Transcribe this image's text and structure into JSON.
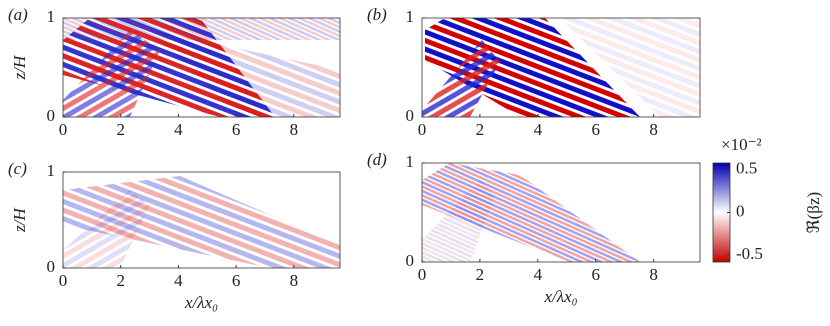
{
  "chart_data": [
    {
      "type": "heatmap",
      "panel_label": "(a)",
      "y_label": "z/H",
      "xlim": [
        0,
        9.6
      ],
      "xticks": [
        0,
        2,
        4,
        6,
        8
      ],
      "ylim": [
        0,
        1
      ],
      "yticks": [
        0,
        1
      ]
    },
    {
      "type": "heatmap",
      "panel_label": "(b)",
      "xlim": [
        0,
        9.6
      ],
      "xticks": [
        0,
        2,
        4,
        6,
        8
      ],
      "ylim": [
        0,
        1
      ],
      "yticks": [
        0,
        1
      ]
    },
    {
      "type": "heatmap",
      "panel_label": "(c)",
      "y_label": "z/H",
      "x_label": "x/λx₀",
      "xlim": [
        0,
        9.6
      ],
      "xticks": [
        0,
        2,
        4,
        6,
        8
      ],
      "ylim": [
        0,
        1
      ],
      "yticks": [
        0,
        1
      ]
    },
    {
      "type": "heatmap",
      "panel_label": "(d)",
      "x_label": "x/λx₀",
      "xlim": [
        0,
        9.6
      ],
      "xticks": [
        0,
        2,
        4,
        6,
        8
      ],
      "ylim": [
        0,
        1
      ],
      "yticks": [
        0,
        1
      ],
      "colorbar": {
        "clim": [
          -0.58,
          0.58
        ],
        "ticks": [
          0.5,
          0,
          -0.5
        ],
        "scale_label": "×10⁻²",
        "label": "ℜ(βz)"
      }
    }
  ]
}
